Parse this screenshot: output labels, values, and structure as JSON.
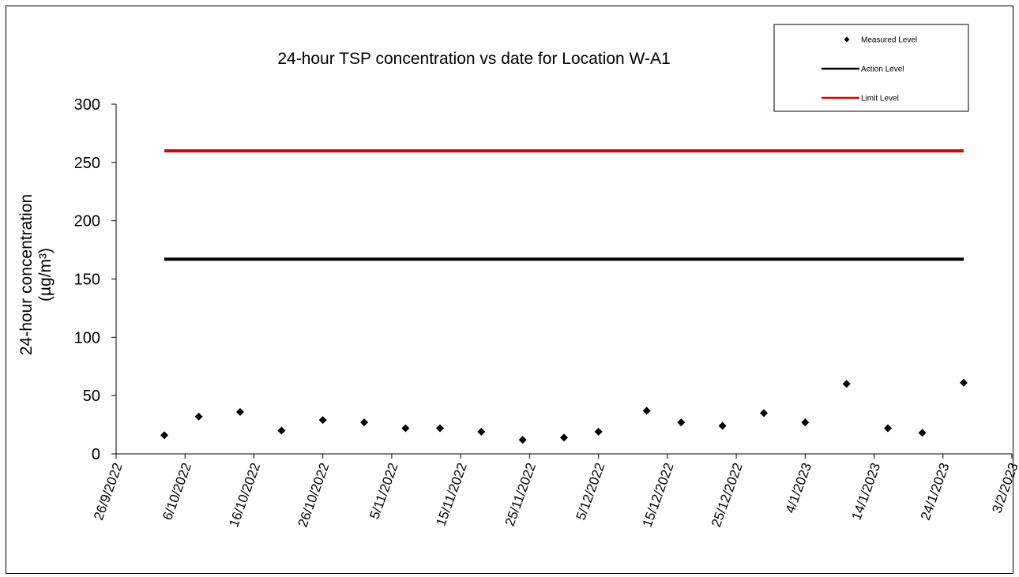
{
  "chart_data": {
    "type": "scatter",
    "title": "24-hour TSP concentration vs date for Location W-A1",
    "xlabel": "",
    "ylabel_line1": "24-hour concentration",
    "ylabel_line2": "(µg/m³)",
    "ylim": [
      0,
      300
    ],
    "y_ticks": [
      0,
      50,
      100,
      150,
      200,
      250,
      300
    ],
    "xlim": [
      "2022-09-26",
      "2023-02-03"
    ],
    "x_ticks": [
      {
        "date": "2022-09-26",
        "label": "26/9/2022"
      },
      {
        "date": "2022-10-06",
        "label": "6/10/2022"
      },
      {
        "date": "2022-10-16",
        "label": "16/10/2022"
      },
      {
        "date": "2022-10-26",
        "label": "26/10/2022"
      },
      {
        "date": "2022-11-05",
        "label": "5/11/2022"
      },
      {
        "date": "2022-11-15",
        "label": "15/11/2022"
      },
      {
        "date": "2022-11-25",
        "label": "25/11/2022"
      },
      {
        "date": "2022-12-05",
        "label": "5/12/2022"
      },
      {
        "date": "2022-12-15",
        "label": "15/12/2022"
      },
      {
        "date": "2022-12-25",
        "label": "25/12/2022"
      },
      {
        "date": "2023-01-04",
        "label": "4/1/2023"
      },
      {
        "date": "2023-01-14",
        "label": "14/1/2023"
      },
      {
        "date": "2023-01-24",
        "label": "24/1/2023"
      },
      {
        "date": "2023-02-03",
        "label": "3/2/2023"
      }
    ],
    "grid": false,
    "legend_position": "top-right",
    "series": [
      {
        "name": "Measured Level",
        "kind": "scatter",
        "color": "#000000",
        "points": [
          {
            "x": "2022-10-03",
            "y": 16
          },
          {
            "x": "2022-10-08",
            "y": 32
          },
          {
            "x": "2022-10-14",
            "y": 36
          },
          {
            "x": "2022-10-20",
            "y": 20
          },
          {
            "x": "2022-10-26",
            "y": 29
          },
          {
            "x": "2022-11-01",
            "y": 27
          },
          {
            "x": "2022-11-07",
            "y": 22
          },
          {
            "x": "2022-11-12",
            "y": 22
          },
          {
            "x": "2022-11-18",
            "y": 19
          },
          {
            "x": "2022-11-24",
            "y": 12
          },
          {
            "x": "2022-11-30",
            "y": 14
          },
          {
            "x": "2022-12-05",
            "y": 19
          },
          {
            "x": "2022-12-12",
            "y": 37
          },
          {
            "x": "2022-12-17",
            "y": 27
          },
          {
            "x": "2022-12-23",
            "y": 24
          },
          {
            "x": "2022-12-29",
            "y": 35
          },
          {
            "x": "2023-01-04",
            "y": 27
          },
          {
            "x": "2023-01-10",
            "y": 60
          },
          {
            "x": "2023-01-16",
            "y": 22
          },
          {
            "x": "2023-01-21",
            "y": 18
          },
          {
            "x": "2023-01-27",
            "y": 61
          }
        ]
      },
      {
        "name": "Action Level",
        "kind": "line",
        "color": "#000000",
        "x": [
          "2022-10-03",
          "2023-01-27"
        ],
        "values": [
          167,
          167
        ]
      },
      {
        "name": "Limit Level",
        "kind": "line",
        "color": "#e00000",
        "x": [
          "2022-10-03",
          "2023-01-27"
        ],
        "values": [
          260,
          260
        ]
      }
    ]
  }
}
